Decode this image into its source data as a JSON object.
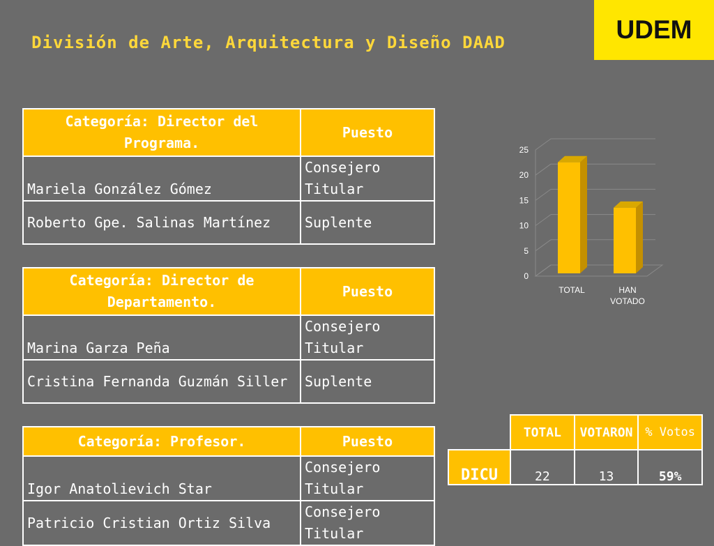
{
  "logo": "UDEM",
  "title": "División de Arte, Arquitectura y Diseño DAAD",
  "tables": [
    {
      "header": "Categoría: Director del Programa.",
      "puesto": "Puesto",
      "rows": [
        {
          "name": "Mariela González Gómez",
          "role": "Consejero Titular"
        },
        {
          "name": "Roberto Gpe. Salinas Martínez",
          "role": "Suplente"
        }
      ]
    },
    {
      "header": "Categoría: Director de Departamento.",
      "puesto": "Puesto",
      "rows": [
        {
          "name": "Marina Garza Peña",
          "role": "Consejero Titular"
        },
        {
          "name": "Cristina Fernanda Guzmán Siller",
          "role": "Suplente"
        }
      ]
    },
    {
      "header": "Categoría: Profesor.",
      "puesto": "Puesto",
      "rows": [
        {
          "name": "Igor Anatolievich Star",
          "role": "Consejero Titular"
        },
        {
          "name": "Patricio Cristian Ortiz Silva",
          "role": "Consejero Titular"
        }
      ]
    }
  ],
  "chart_data": {
    "type": "bar",
    "categories": [
      "TOTAL",
      "HAN VOTADO"
    ],
    "values": [
      22,
      13
    ],
    "ylim": [
      0,
      25
    ],
    "yticks": [
      "0",
      "5",
      "10",
      "15",
      "20",
      "25"
    ],
    "bar_color": "#ffc000",
    "title": "",
    "xlabel": "",
    "ylabel": ""
  },
  "votes": {
    "headers": [
      "TOTAL",
      "VOTARON",
      "% Votos"
    ],
    "row_label": "DICU",
    "values": [
      "22",
      "13",
      "59%"
    ]
  },
  "colors": {
    "accent": "#ffc000",
    "logo_bg": "#ffe600",
    "background": "#6b6b6b"
  }
}
